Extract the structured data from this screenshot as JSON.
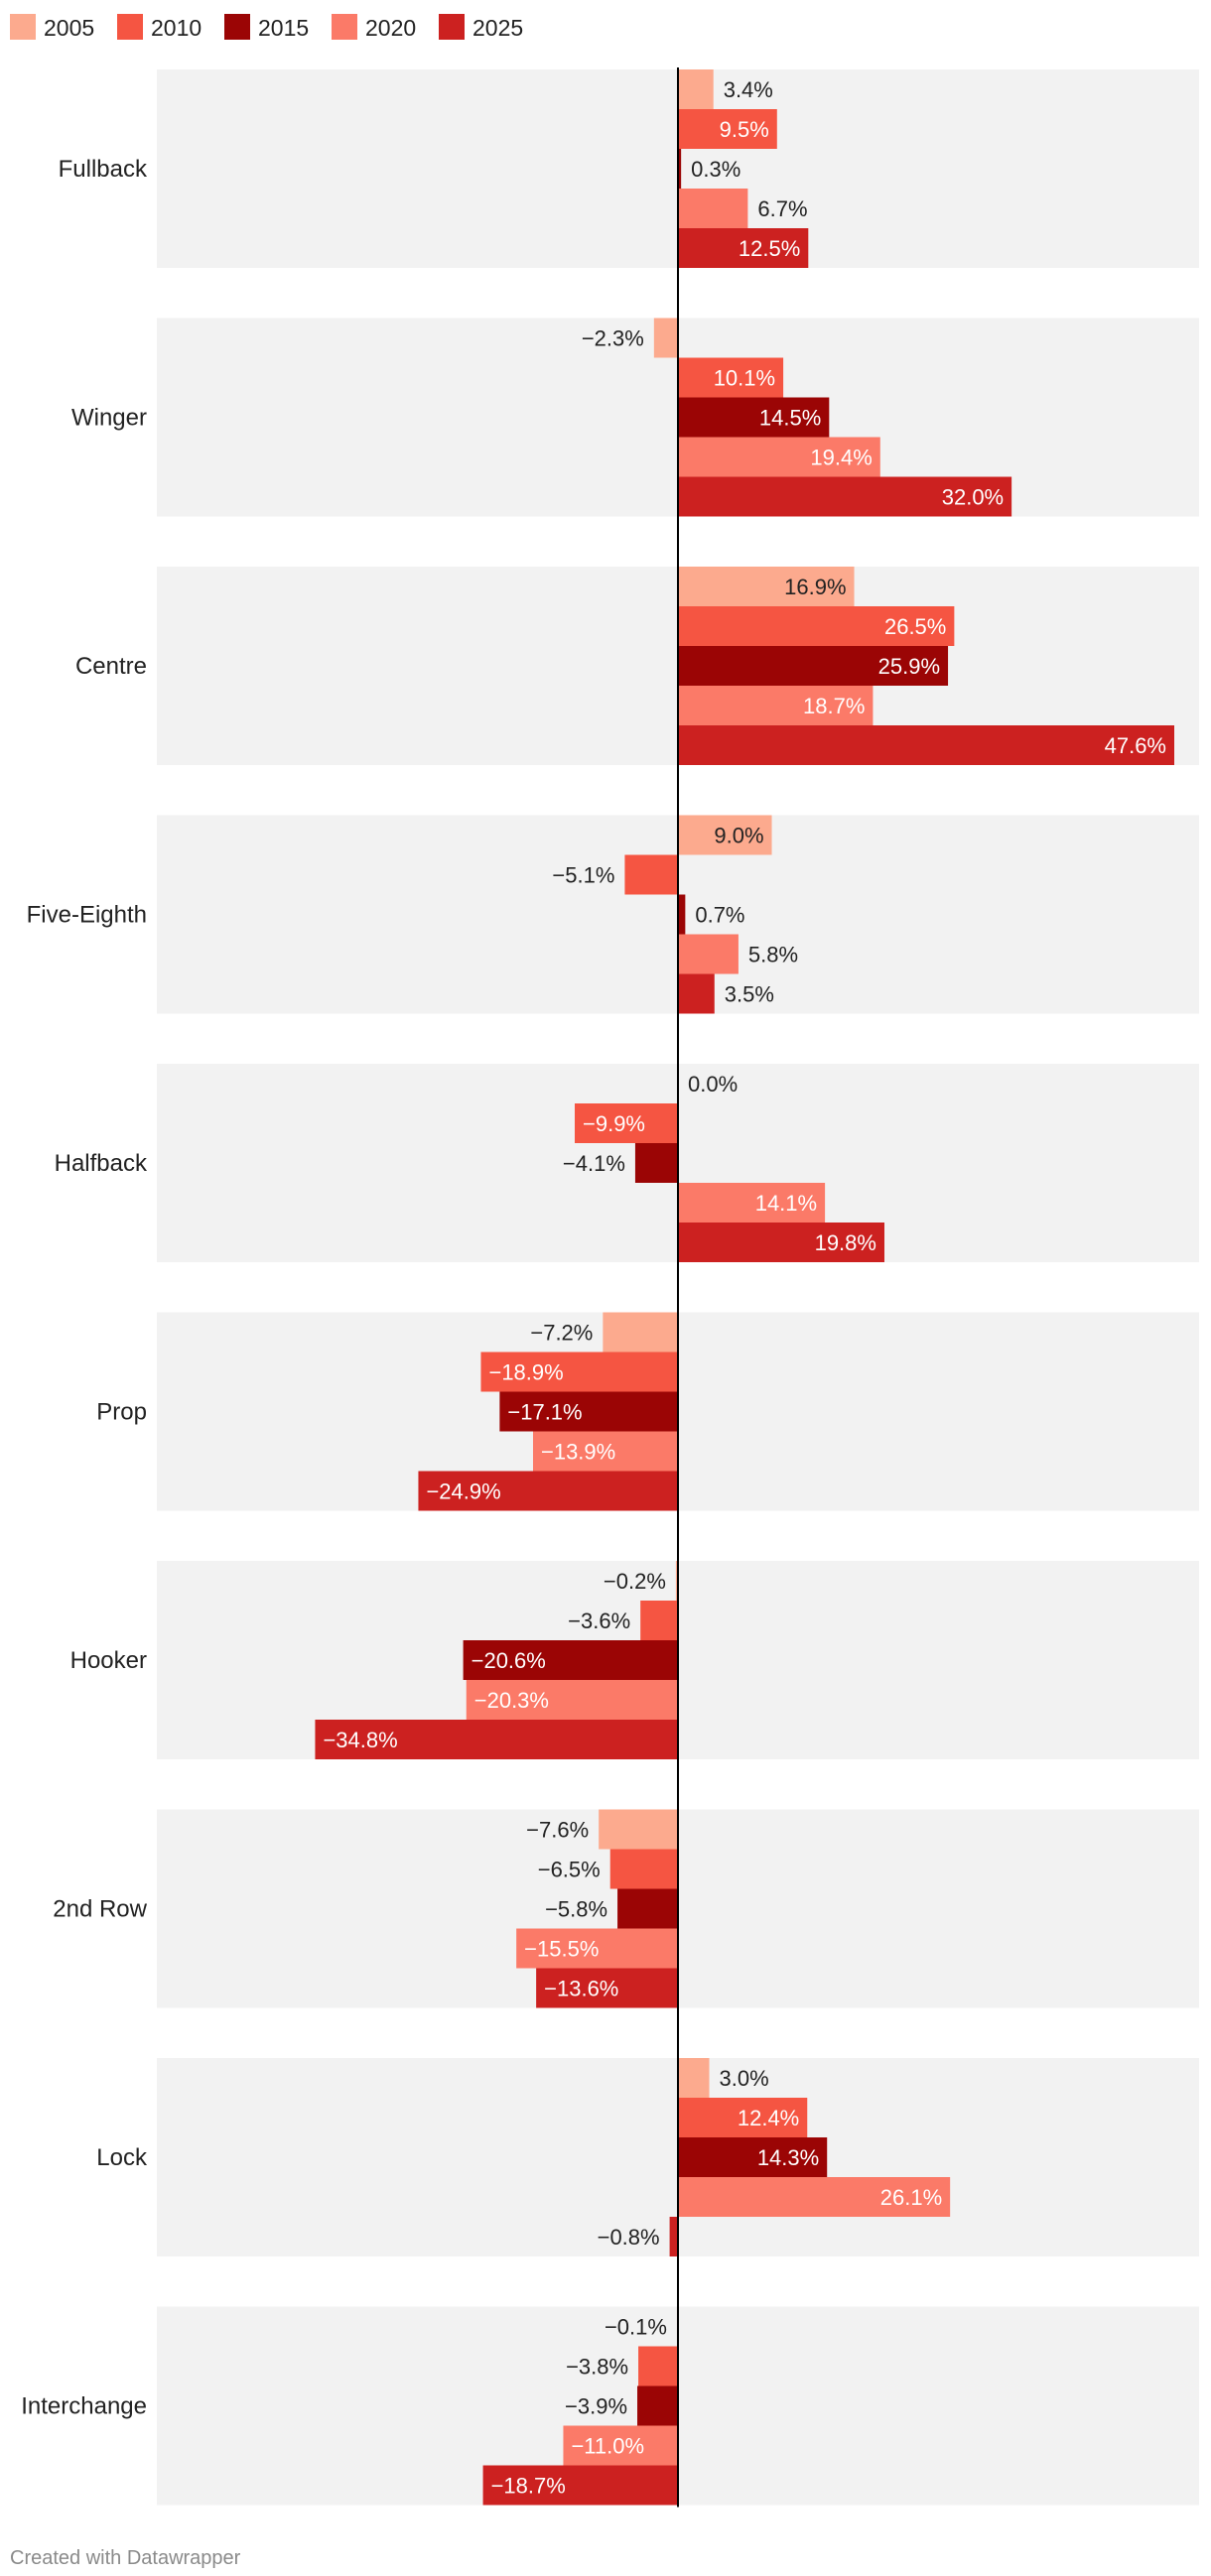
{
  "chart_data": {
    "type": "bar",
    "orientation": "horizontal",
    "title": "",
    "xlabel": "",
    "ylabel": "",
    "xlim": [
      -40,
      50
    ],
    "grid": false,
    "legend_position": "top-left",
    "categories": [
      "Fullback",
      "Winger",
      "Centre",
      "Five-Eighth",
      "Halfback",
      "Prop",
      "Hooker",
      "2nd Row",
      "Lock",
      "Interchange"
    ],
    "series": [
      {
        "name": "2005",
        "color": "#fcaa8e",
        "values": [
          3.4,
          -2.3,
          16.9,
          9.0,
          0.0,
          -7.2,
          -0.2,
          -7.6,
          3.0,
          -0.1
        ],
        "labels": [
          "3.4%",
          "−2.3%",
          "16.9%",
          "9.0%",
          "0.0%",
          "−7.2%",
          "−0.2%",
          "−7.6%",
          "3.0%",
          "−0.1%"
        ]
      },
      {
        "name": "2010",
        "color": "#f55542",
        "values": [
          9.5,
          10.1,
          26.5,
          -5.1,
          -9.9,
          -18.9,
          -3.6,
          -6.5,
          12.4,
          -3.8
        ],
        "labels": [
          "9.5%",
          "10.1%",
          "26.5%",
          "−5.1%",
          "−9.9%",
          "−18.9%",
          "−3.6%",
          "−6.5%",
          "12.4%",
          "−3.8%"
        ]
      },
      {
        "name": "2015",
        "color": "#9b0505",
        "values": [
          0.3,
          14.5,
          25.9,
          0.7,
          -4.1,
          -17.1,
          -20.6,
          -5.8,
          14.3,
          -3.9
        ],
        "labels": [
          "0.3%",
          "14.5%",
          "25.9%",
          "0.7%",
          "−4.1%",
          "−17.1%",
          "−20.6%",
          "−5.8%",
          "14.3%",
          "−3.9%"
        ]
      },
      {
        "name": "2020",
        "color": "#fb7a68",
        "values": [
          6.7,
          19.4,
          18.7,
          5.8,
          14.1,
          -13.9,
          -20.3,
          -15.5,
          26.1,
          -11.0
        ],
        "labels": [
          "6.7%",
          "19.4%",
          "18.7%",
          "5.8%",
          "14.1%",
          "−13.9%",
          "−20.3%",
          "−15.5%",
          "26.1%",
          "−11.0%"
        ]
      },
      {
        "name": "2025",
        "color": "#cc2120",
        "values": [
          12.5,
          32.0,
          47.6,
          3.5,
          19.8,
          -24.9,
          -34.8,
          -13.6,
          -0.8,
          -18.7
        ],
        "labels": [
          "12.5%",
          "32.0%",
          "47.6%",
          "3.5%",
          "19.8%",
          "−24.9%",
          "−34.8%",
          "−13.6%",
          "−0.8%",
          "−18.7%"
        ]
      }
    ]
  },
  "footer": {
    "credit": "Created with Datawrapper"
  },
  "colors": {
    "panel": "#f2f2f2",
    "axis": "#000000",
    "text_dark": "#222222",
    "text_light": "#ffffff"
  }
}
